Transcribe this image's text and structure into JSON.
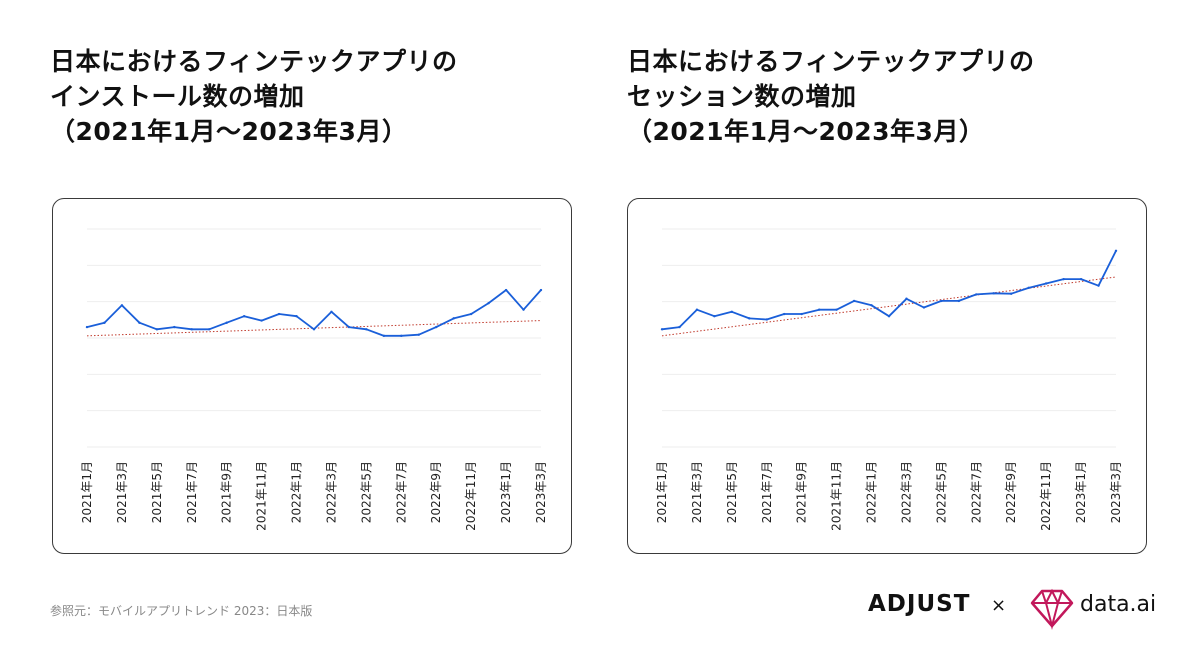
{
  "titles": {
    "left": [
      "日本におけるフィンテックアプリの",
      "インストール数の増加",
      "（2021年1月〜2023年3月）"
    ],
    "right": [
      "日本におけるフィンテックアプリの",
      "セッション数の増加",
      "（2021年1月〜2023年3月）"
    ]
  },
  "source": "参照元：モバイルアプリトレンド 2023：日本版",
  "logos": {
    "adjust": "ADJUST",
    "times": "×",
    "dataai": "data.ai"
  },
  "colors": {
    "line": "#1a5fd9",
    "trend": "#c0392b",
    "grid": "#eeeeee"
  },
  "chart_data": [
    {
      "type": "line",
      "title": "日本におけるフィンテックアプリのインストール数の増加（2021年1月〜2023年3月）",
      "tick_labels": [
        "2021年1月",
        "2021年3月",
        "2021年5月",
        "2021年7月",
        "2021年9月",
        "2021年11月",
        "2022年1月",
        "2022年3月",
        "2022年5月",
        "2022年7月",
        "2022年9月",
        "2022年11月",
        "2023年1月",
        "2023年3月"
      ],
      "x": [
        "2021-01",
        "2021-02",
        "2021-03",
        "2021-04",
        "2021-05",
        "2021-06",
        "2021-07",
        "2021-08",
        "2021-09",
        "2021-10",
        "2021-11",
        "2021-12",
        "2022-01",
        "2022-02",
        "2022-03",
        "2022-04",
        "2022-05",
        "2022-06",
        "2022-07",
        "2022-08",
        "2022-09",
        "2022-10",
        "2022-11",
        "2022-12",
        "2023-01",
        "2023-02",
        "2023-03"
      ],
      "series": [
        {
          "values": [
            55,
            57,
            65,
            57,
            54,
            55,
            54,
            54,
            57,
            60,
            58,
            61,
            60,
            54,
            62,
            55,
            54,
            51,
            51,
            51.5,
            55,
            59,
            61,
            66,
            72,
            63,
            72
          ]
        }
      ],
      "trendline": {
        "type": "linear",
        "start": 51,
        "end": 58
      },
      "ylim": [
        0,
        100
      ],
      "grid": true
    },
    {
      "type": "line",
      "title": "日本におけるフィンテックアプリのセッション数の増加（2021年1月〜2023年3月）",
      "tick_labels": [
        "2021年1月",
        "2021年3月",
        "2021年5月",
        "2021年7月",
        "2021年9月",
        "2021年11月",
        "2022年1月",
        "2022年3月",
        "2022年5月",
        "2022年7月",
        "2022年9月",
        "2022年11月",
        "2023年1月",
        "2023年3月"
      ],
      "x": [
        "2021-01",
        "2021-02",
        "2021-03",
        "2021-04",
        "2021-05",
        "2021-06",
        "2021-07",
        "2021-08",
        "2021-09",
        "2021-10",
        "2021-11",
        "2021-12",
        "2022-01",
        "2022-02",
        "2022-03",
        "2022-04",
        "2022-05",
        "2022-06",
        "2022-07",
        "2022-08",
        "2022-09",
        "2022-10",
        "2022-11",
        "2022-12",
        "2023-01",
        "2023-02",
        "2023-03"
      ],
      "series": [
        {
          "values": [
            54,
            55,
            63,
            60,
            62,
            59,
            58.5,
            61,
            61,
            63,
            63,
            67,
            65,
            60,
            68,
            64,
            67,
            67,
            70,
            70.5,
            70.3,
            73,
            75,
            77,
            77,
            74,
            90
          ]
        }
      ],
      "trendline": {
        "type": "linear",
        "start": 51,
        "end": 78
      },
      "ylim": [
        0,
        100
      ],
      "grid": true
    }
  ]
}
